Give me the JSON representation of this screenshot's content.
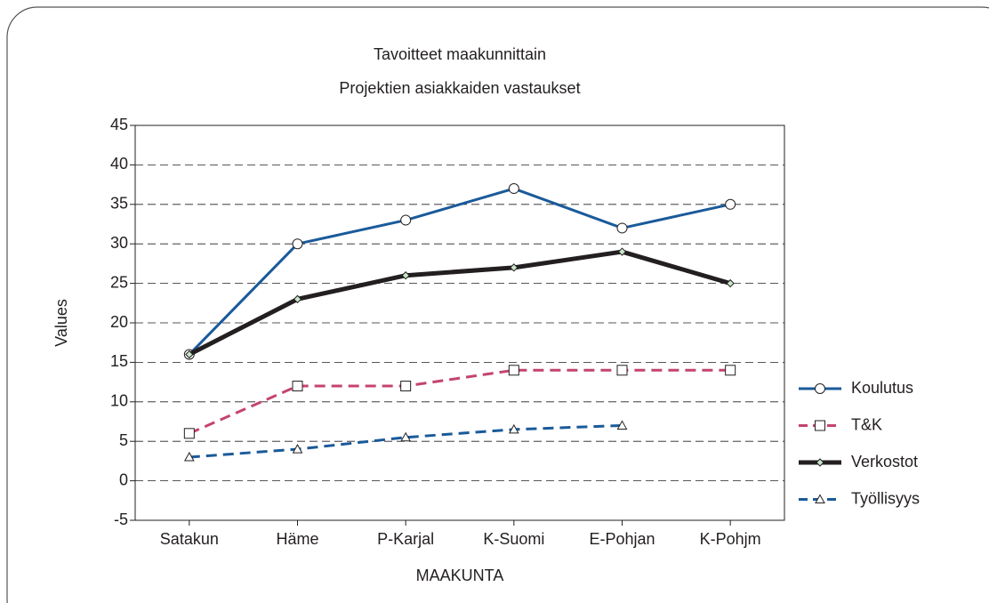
{
  "chart_data": {
    "type": "line",
    "title": "Tavoitteet maakunnittain",
    "subtitle": "Projektien asiakkaiden vastaukset",
    "x_label": "MAAKUNTA",
    "y_label": "Values",
    "categories": [
      "Satakun",
      "Häme",
      "P-Karjal",
      "K-Suomi",
      "E-Pohjan",
      "K-Pohjm"
    ],
    "series": [
      {
        "name": "Koulutus",
        "color": "#1a5a9a",
        "line_style": "solid",
        "line_width": 3,
        "marker": "circle",
        "values": [
          16,
          30,
          33,
          37,
          32,
          35
        ]
      },
      {
        "name": "T&K",
        "color": "#c4446e",
        "line_style": "dashed",
        "line_width": 3,
        "marker": "square",
        "values": [
          6,
          12,
          12,
          14,
          14,
          14
        ]
      },
      {
        "name": "Verkostot",
        "color": "#231f20",
        "line_style": "solid",
        "line_width": 5,
        "marker": "diamond",
        "values": [
          16,
          23,
          26,
          27,
          29,
          25
        ]
      },
      {
        "name": "Työllisyys",
        "color": "#1a5a9a",
        "line_style": "dashed",
        "line_width": 3,
        "marker": "triangle",
        "values": [
          3,
          4,
          5.5,
          6.5,
          7,
          null
        ]
      }
    ],
    "ylim": [
      -5,
      45
    ],
    "yticks": [
      -5,
      0,
      5,
      10,
      15,
      20,
      25,
      30,
      35,
      40,
      45
    ],
    "grid": true,
    "legend": "right"
  }
}
